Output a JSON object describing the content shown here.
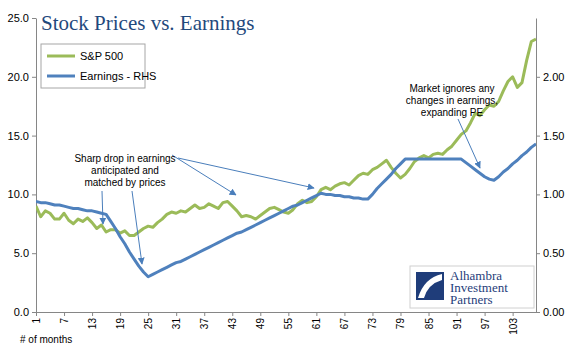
{
  "chart_data": {
    "type": "line",
    "title": "Stock Prices vs. Earnings",
    "x_label": "# of months",
    "x": [
      1,
      2,
      3,
      4,
      5,
      6,
      7,
      8,
      9,
      10,
      11,
      12,
      13,
      14,
      15,
      16,
      17,
      18,
      19,
      20,
      21,
      22,
      23,
      24,
      25,
      26,
      27,
      28,
      29,
      30,
      31,
      32,
      33,
      34,
      35,
      36,
      37,
      38,
      39,
      40,
      41,
      42,
      43,
      44,
      45,
      46,
      47,
      48,
      49,
      50,
      51,
      52,
      53,
      54,
      55,
      56,
      57,
      58,
      59,
      60,
      61,
      62,
      63,
      64,
      65,
      66,
      67,
      68,
      69,
      70,
      71,
      72,
      73,
      74,
      75,
      76,
      77,
      78,
      79,
      80,
      81,
      82,
      83,
      84,
      85,
      86,
      87,
      88,
      89,
      90,
      91,
      92,
      93,
      94,
      95,
      96,
      97,
      98,
      99,
      100,
      101,
      102,
      103,
      104,
      105,
      106,
      107,
      108
    ],
    "xlim": [
      1,
      108
    ],
    "xticks": [
      1,
      7,
      13,
      19,
      25,
      31,
      37,
      43,
      49,
      55,
      61,
      67,
      73,
      79,
      85,
      91,
      97,
      103
    ],
    "ylim": [
      0,
      25
    ],
    "yticks": [
      {
        "value": 0,
        "label": "0.0"
      },
      {
        "value": 5,
        "label": "5.0"
      },
      {
        "value": 10,
        "label": "10.0"
      },
      {
        "value": 15,
        "label": "15.0"
      },
      {
        "value": 20,
        "label": "20.0"
      },
      {
        "value": 25,
        "label": "25.0"
      }
    ],
    "y2lim": [
      0,
      2.5
    ],
    "y2ticks": [
      {
        "value": 0,
        "label": "0.00"
      },
      {
        "value": 0.5,
        "label": "0.50"
      },
      {
        "value": 1,
        "label": "1.00"
      },
      {
        "value": 1.5,
        "label": "1.50"
      },
      {
        "value": 2,
        "label": "2.00"
      }
    ],
    "grid": false,
    "legend": "upper left",
    "series": [
      {
        "name": "S&P 500",
        "color": "#9bbb59",
        "values": [
          9.0,
          8.1,
          8.6,
          8.4,
          7.9,
          7.9,
          8.4,
          7.8,
          7.5,
          7.9,
          7.7,
          8.0,
          7.6,
          7.1,
          7.4,
          6.8,
          7.0,
          7.0,
          6.7,
          6.9,
          6.5,
          6.5,
          6.8,
          7.1,
          7.3,
          7.2,
          7.6,
          7.9,
          8.3,
          8.5,
          8.4,
          8.6,
          8.5,
          8.8,
          9.1,
          8.8,
          8.9,
          9.2,
          9.0,
          8.8,
          9.3,
          9.4,
          9.0,
          8.6,
          8.1,
          8.2,
          8.1,
          7.9,
          8.2,
          8.5,
          8.8,
          8.9,
          8.7,
          8.5,
          8.4,
          8.7,
          9.2,
          9.5,
          9.3,
          9.4,
          9.8,
          10.4,
          10.6,
          10.4,
          10.7,
          10.9,
          11.0,
          10.8,
          11.2,
          11.6,
          11.8,
          11.7,
          12.1,
          12.3,
          12.6,
          12.9,
          12.3,
          11.8,
          11.4,
          11.7,
          12.2,
          12.8,
          13.1,
          13.3,
          13.1,
          13.4,
          13.5,
          13.4,
          13.8,
          14.1,
          14.6,
          15.1,
          15.4,
          16.1,
          16.9,
          16.7,
          17.2,
          17.6,
          17.5,
          17.9,
          18.8,
          19.6,
          20.0,
          19.1,
          19.5,
          21.4,
          23.0,
          23.2
        ]
      },
      {
        "name": "Earnings - RHS",
        "color": "#4f81bd",
        "axis": "y2",
        "values": [
          0.94,
          0.93,
          0.93,
          0.92,
          0.91,
          0.91,
          0.9,
          0.89,
          0.88,
          0.88,
          0.87,
          0.86,
          0.86,
          0.85,
          0.84,
          0.83,
          0.77,
          0.71,
          0.64,
          0.58,
          0.51,
          0.45,
          0.39,
          0.34,
          0.3,
          0.32,
          0.34,
          0.36,
          0.38,
          0.4,
          0.42,
          0.43,
          0.45,
          0.47,
          0.49,
          0.51,
          0.53,
          0.55,
          0.57,
          0.59,
          0.61,
          0.63,
          0.65,
          0.67,
          0.68,
          0.7,
          0.72,
          0.74,
          0.76,
          0.78,
          0.8,
          0.82,
          0.84,
          0.86,
          0.88,
          0.9,
          0.91,
          0.93,
          0.95,
          0.97,
          0.99,
          1.01,
          1.0,
          1.0,
          0.99,
          0.99,
          0.98,
          0.98,
          0.97,
          0.97,
          0.96,
          0.96,
          1.0,
          1.05,
          1.09,
          1.13,
          1.17,
          1.22,
          1.26,
          1.3,
          1.3,
          1.3,
          1.3,
          1.3,
          1.3,
          1.3,
          1.3,
          1.3,
          1.3,
          1.3,
          1.3,
          1.3,
          1.27,
          1.24,
          1.21,
          1.18,
          1.15,
          1.13,
          1.12,
          1.15,
          1.19,
          1.22,
          1.26,
          1.29,
          1.33,
          1.36,
          1.4,
          1.43
        ]
      }
    ],
    "annotations": [
      {
        "lines": [
          "Sharp drop in earnings",
          "anticipated and",
          "matched by prices"
        ]
      },
      {
        "lines": [
          "Market ignores any",
          "changes in earnings,",
          "expanding PE"
        ]
      }
    ],
    "logo": [
      "Alhambra",
      "Investment",
      "Partners"
    ]
  }
}
